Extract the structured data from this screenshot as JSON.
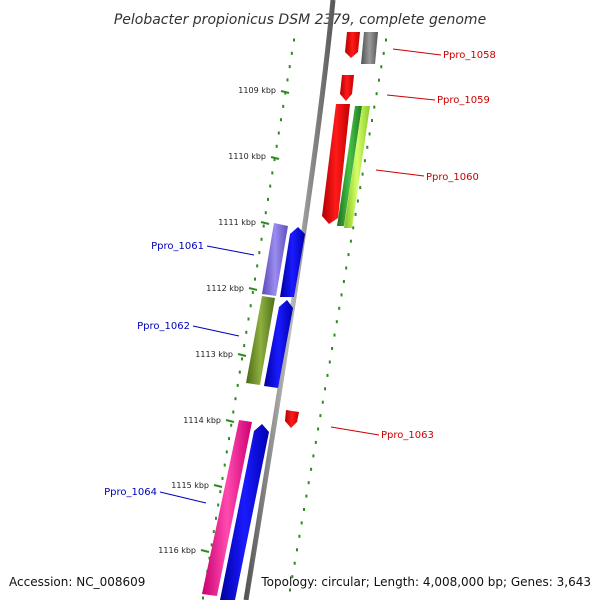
{
  "title": "Pelobacter propionicus DSM 2379, complete genome",
  "footer": {
    "accession": "Accession: NC_008609",
    "topology": "Topology: circular; Length: 4,008,000 bp; Genes: 3,643"
  },
  "ticks": [
    "1109 kbp",
    "1110 kbp",
    "1111 kbp",
    "1112 kbp",
    "1113 kbp",
    "1114 kbp",
    "1115 kbp",
    "1116 kbp"
  ],
  "genes": [
    {
      "label": "Ppro_1058",
      "strand": "forward",
      "color": "#cc0000"
    },
    {
      "label": "Ppro_1059",
      "strand": "forward",
      "color": "#cc0000"
    },
    {
      "label": "Ppro_1060",
      "strand": "forward",
      "color": "#cc0000"
    },
    {
      "label": "Ppro_1061",
      "strand": "reverse",
      "color": "#0000bb"
    },
    {
      "label": "Ppro_1062",
      "strand": "reverse",
      "color": "#0000bb"
    },
    {
      "label": "Ppro_1063",
      "strand": "forward",
      "color": "#cc0000"
    },
    {
      "label": "Ppro_1064",
      "strand": "reverse",
      "color": "#0000bb"
    }
  ],
  "colors": {
    "backbone": "#888888",
    "tick_green": "#2e8b20",
    "forward_gene": "#ff0000",
    "reverse_gene": "#0000ff",
    "cog_gray": "#6e6e6e",
    "cog_green": "#2f9a2f",
    "cog_yellow_green": "#a6e63a",
    "cog_purple": "#7a6ad8",
    "cog_olive": "#6b8e23",
    "cog_pink": "#ff1493"
  }
}
